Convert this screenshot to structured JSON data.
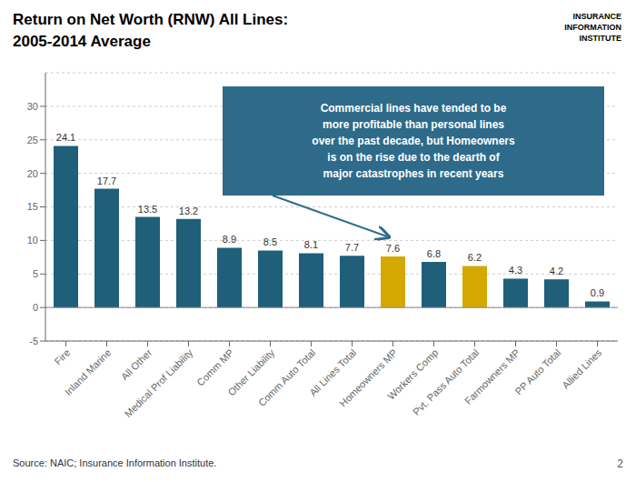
{
  "chart_data": {
    "type": "bar",
    "title": "Return on Net Worth (RNW) All Lines:",
    "subtitle": "2005-2014 Average",
    "categories": [
      "Fire",
      "Inland Marine",
      "All Other",
      "Medical Prof Liability",
      "Comm MP",
      "Other Liability",
      "Comm Auto Total",
      "All Lines Total",
      "Homeowners MP",
      "Workers Comp",
      "Pvt. Pass Auto Total",
      "Farmowners MP",
      "PP Auto Total",
      "Allied Lines"
    ],
    "values": [
      24.1,
      17.7,
      13.5,
      13.2,
      8.9,
      8.5,
      8.1,
      7.7,
      7.6,
      6.8,
      6.2,
      4.3,
      4.2,
      0.9
    ],
    "colors": [
      "#1f5f7a",
      "#1f5f7a",
      "#1f5f7a",
      "#1f5f7a",
      "#1f5f7a",
      "#1f5f7a",
      "#1f5f7a",
      "#1f5f7a",
      "#d4a800",
      "#1f5f7a",
      "#d4a800",
      "#1f5f7a",
      "#1f5f7a",
      "#1f5f7a"
    ],
    "ylim": [
      -5,
      35
    ],
    "yticks": [
      -5,
      0,
      5,
      10,
      15,
      20,
      25,
      30
    ],
    "grid": true,
    "data_labels": true,
    "annotations": [
      "Commercial lines have tended to be\nmore profitable than personal lines\nover the past decade, but Homeowners\nis on the rise due to the dearth of\nmajor catastrophes in recent years",
      "Source: NAIC; Insurance Information Institute.",
      "2",
      "INSURANCE\nINFORMATION\nINSTITUTE"
    ]
  }
}
